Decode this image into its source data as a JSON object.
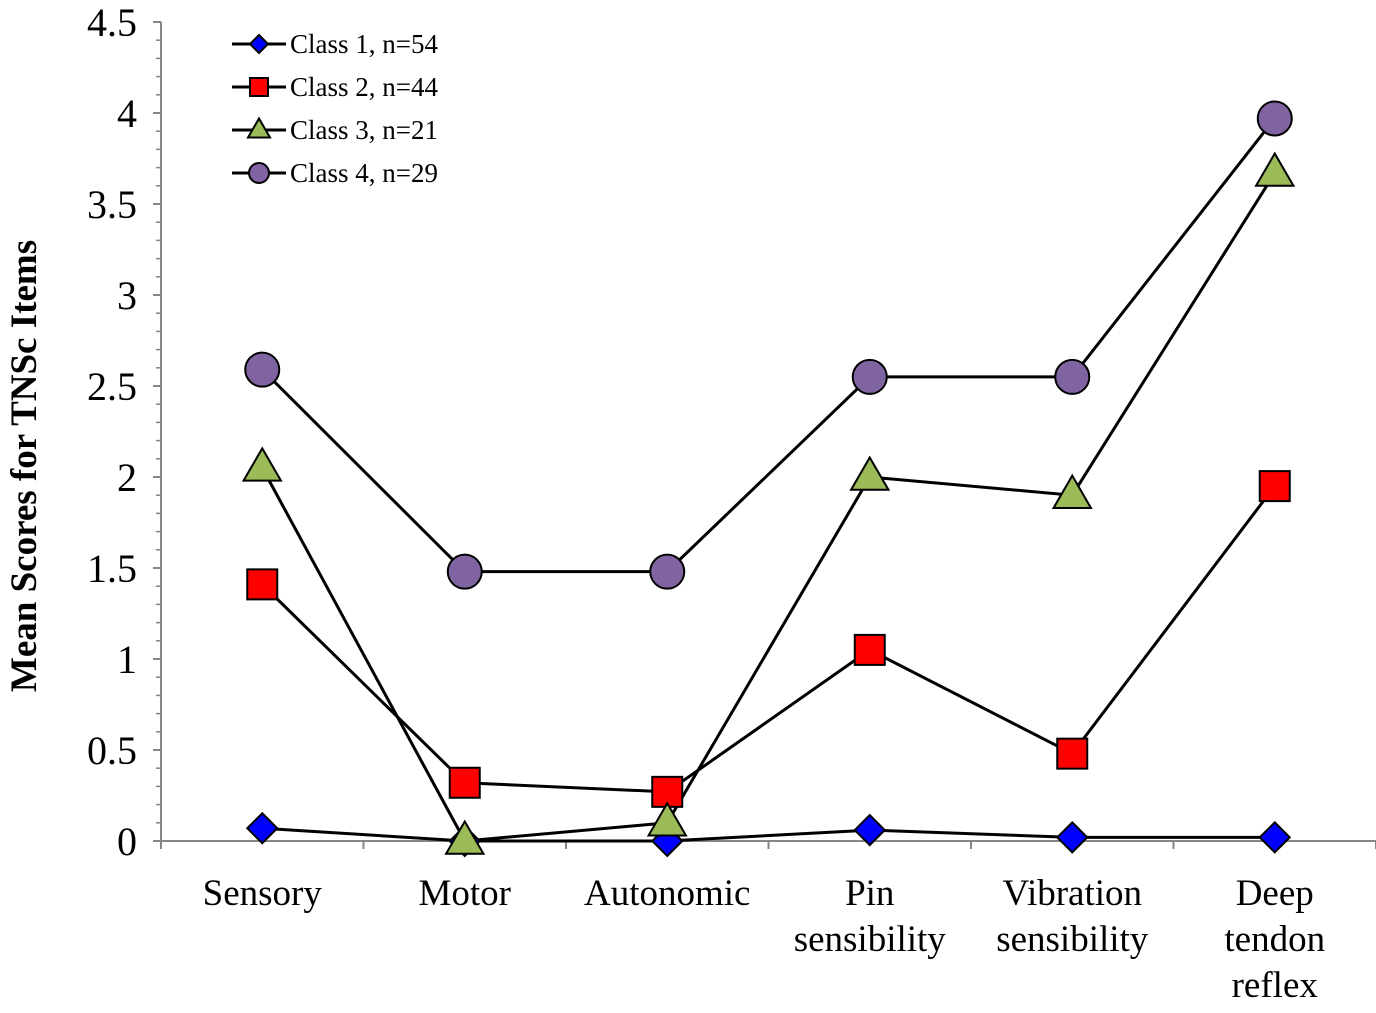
{
  "chart_data": {
    "type": "line",
    "title": "",
    "xlabel": "",
    "ylabel": "Mean Scores for TNSc Items",
    "ylim": [
      0,
      4.5
    ],
    "yticks": [
      "0",
      "0.5",
      "1",
      "1.5",
      "2",
      "2.5",
      "3",
      "3.5",
      "4",
      "4.5"
    ],
    "ytick_values": [
      0,
      0.5,
      1,
      1.5,
      2,
      2.5,
      3,
      3.5,
      4,
      4.5
    ],
    "grid": false,
    "legend_position": "top-left",
    "categories": [
      [
        "Sensory"
      ],
      [
        "Motor"
      ],
      [
        "Autonomic"
      ],
      [
        "Pin",
        "sensibility"
      ],
      [
        "Vibration",
        "sensibility"
      ],
      [
        "Deep",
        "tendon",
        "reflex"
      ]
    ],
    "series": [
      {
        "name": "Class 1, n=54",
        "marker": "diamond",
        "color": "#0000FF",
        "values": [
          0.07,
          0.0,
          0.0,
          0.06,
          0.02,
          0.02
        ]
      },
      {
        "name": "Class 2, n=44",
        "marker": "square",
        "color": "#FF0000",
        "values": [
          1.41,
          0.32,
          0.27,
          1.05,
          0.48,
          1.95
        ]
      },
      {
        "name": "Class 3, n=21",
        "marker": "triangle",
        "color": "#9BBB59",
        "values": [
          2.05,
          0.0,
          0.1,
          2.0,
          1.9,
          3.67
        ]
      },
      {
        "name": "Class 4, n=29",
        "marker": "circle",
        "color": "#8064A2",
        "values": [
          2.59,
          1.48,
          1.48,
          2.55,
          2.55,
          3.97
        ]
      }
    ]
  }
}
